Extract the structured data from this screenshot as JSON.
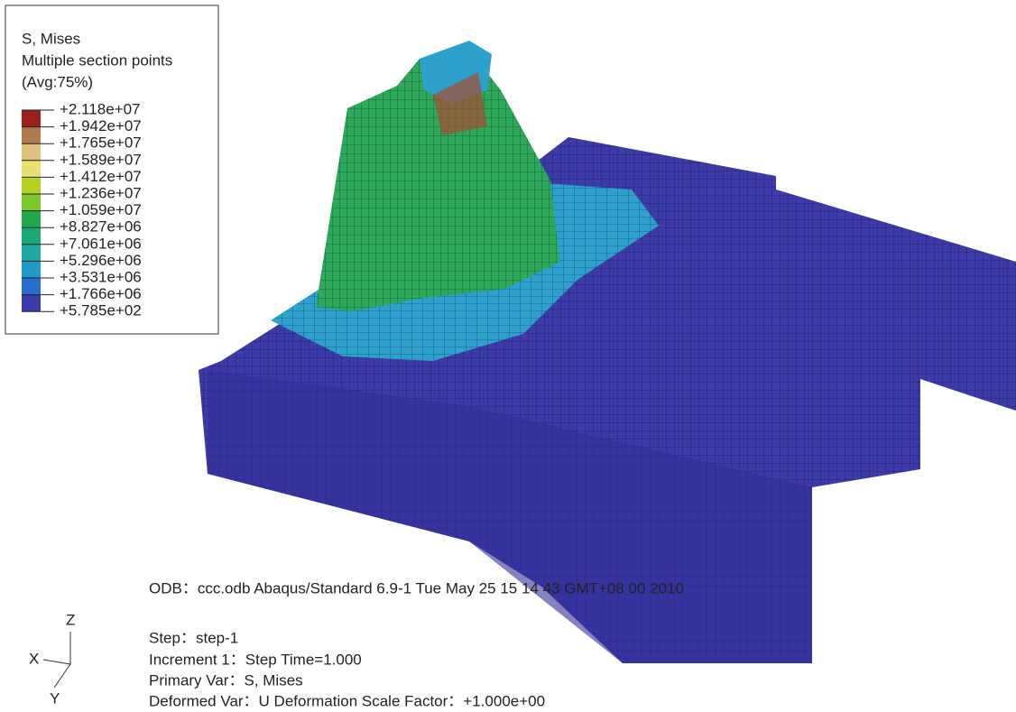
{
  "legend": {
    "title": "S, Mises",
    "subtitle": "Multiple section points",
    "averaging": "(Avg:75%)",
    "levels": [
      "+2.118e+07",
      "+1.942e+07",
      "+1.765e+07",
      "+1.589e+07",
      "+1.412e+07",
      "+1.236e+07",
      "+1.059e+07",
      "+8.827e+06",
      "+7.061e+06",
      "+5.296e+06",
      "+3.531e+06",
      "+1.766e+06",
      "+5.785e+02"
    ],
    "colors": [
      "#9c1f1f",
      "#b07a4a",
      "#dcc27c",
      "#e8e070",
      "#b4d21e",
      "#7cc72a",
      "#22a84a",
      "#18a878",
      "#1ca6a6",
      "#2098c8",
      "#2a6cd0",
      "#3a3aa8"
    ]
  },
  "info": {
    "odb": "ODB：ccc.odb Abaqus/Standard 6.9-1    Tue May 25 15 14 43 GMT+08 00 2010",
    "step": "Step：step-1",
    "increment": "Increment     1：Step Time=1.000",
    "primary": "Primary Var：S, Mises",
    "deformed": "Deformed Var：U   Deformation Scale Factor：+1.000e+00"
  },
  "triad": {
    "z": "Z",
    "x": "X",
    "y": "Y"
  }
}
